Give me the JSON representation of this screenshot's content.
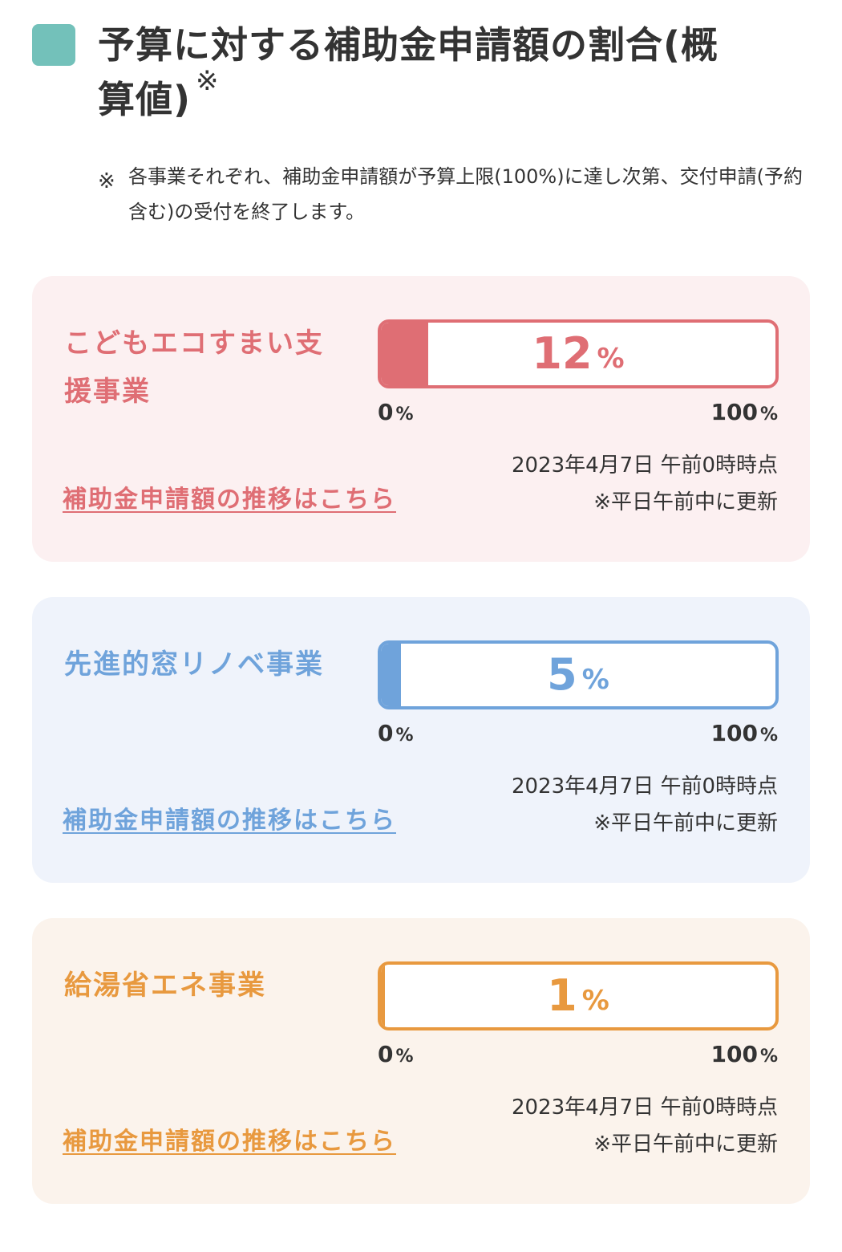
{
  "header": {
    "title": "予算に対する補助金申請額の割合(概算値)",
    "title_mark": "※",
    "note_mark": "※",
    "note": "各事業それぞれ、補助金申請額が予算上限(100%)に達し次第、交付申請(予約含む)の受付を終了します。",
    "marker_color": "#73c1ba"
  },
  "programs": [
    {
      "name": "こどもエコすまい支援事業",
      "progress_value": "12",
      "progress_unit": "%",
      "progress_percent": 12,
      "scale_min": "0",
      "scale_max": "100",
      "scale_unit": "%",
      "timestamp": "2023年4月7日 午前0時時点",
      "update_note": "※平日午前中に更新",
      "link_label": "補助金申請額の推移はこちら",
      "accent_color": "#df6e74",
      "background_color": "#fcf0f1"
    },
    {
      "name": "先進的窓リノベ事業",
      "progress_value": "5",
      "progress_unit": "%",
      "progress_percent": 5,
      "scale_min": "0",
      "scale_max": "100",
      "scale_unit": "%",
      "timestamp": "2023年4月7日 午前0時時点",
      "update_note": "※平日午前中に更新",
      "link_label": "補助金申請額の推移はこちら",
      "accent_color": "#6fa3db",
      "background_color": "#eff3fb"
    },
    {
      "name": "給湯省エネ事業",
      "progress_value": "1",
      "progress_unit": "%",
      "progress_percent": 1,
      "scale_min": "0",
      "scale_max": "100",
      "scale_unit": "%",
      "timestamp": "2023年4月7日 午前0時時点",
      "update_note": "※平日午前中に更新",
      "link_label": "補助金申請額の推移はこちら",
      "accent_color": "#e8993f",
      "background_color": "#fbf3ec"
    }
  ]
}
